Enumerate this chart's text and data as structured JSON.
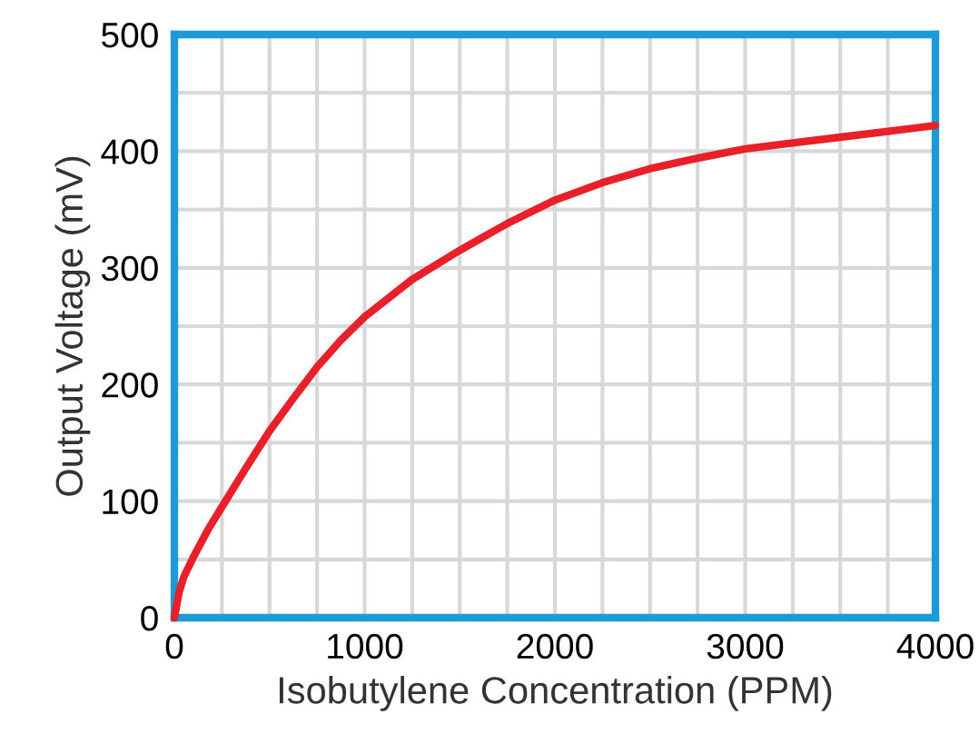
{
  "chart_data": {
    "type": "line",
    "xlabel": "Isobutylene Concentration (PPM)",
    "ylabel": "Output Voltage (mV)",
    "x": [
      0,
      25,
      50,
      100,
      175,
      250,
      375,
      500,
      625,
      750,
      875,
      1000,
      1250,
      1500,
      1750,
      2000,
      2250,
      2500,
      2750,
      3000,
      3250,
      3500,
      3750,
      4000
    ],
    "series": [
      {
        "color": "#e8202a",
        "values": [
          0,
          22,
          35,
          52,
          75,
          95,
          128,
          160,
          188,
          215,
          238,
          258,
          290,
          315,
          338,
          358,
          373,
          385,
          394,
          402,
          407,
          412,
          417,
          422
        ]
      }
    ],
    "xlim": [
      0,
      4000
    ],
    "xticks": [
      0,
      {
        "value": 250,
        "label": null
      },
      {
        "value": 500,
        "label": null
      },
      {
        "value": 750,
        "label": null
      },
      1000,
      {
        "value": 1250,
        "label": null
      },
      {
        "value": 1500,
        "label": null
      },
      {
        "value": 1750,
        "label": null
      },
      2000,
      {
        "value": 2250,
        "label": null
      },
      {
        "value": 2500,
        "label": null
      },
      {
        "value": 2750,
        "label": null
      },
      3000,
      {
        "value": 3250,
        "label": null
      },
      {
        "value": 3500,
        "label": null
      },
      {
        "value": 3750,
        "label": null
      },
      4000
    ],
    "ylim": [
      0,
      500
    ],
    "yticks": [
      0,
      {
        "value": 50,
        "label": null
      },
      100,
      {
        "value": 150,
        "label": null
      },
      200,
      {
        "value": 250,
        "label": null
      },
      300,
      {
        "value": 350,
        "label": null
      },
      400,
      {
        "value": 450,
        "label": null
      },
      500
    ],
    "grid": true,
    "marker": "none",
    "line_style": "solid",
    "legend": false
  }
}
